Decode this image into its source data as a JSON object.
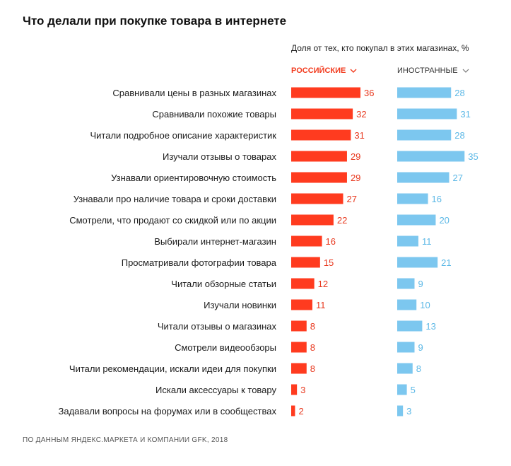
{
  "title": "Что делали при покупке товара в интернете",
  "subtitle": "Доля от тех, кто покупал в этих магазинах, %",
  "tabs": {
    "russian": "РОССИЙСКИЕ",
    "foreign": "ИНОСТРАННЫЕ"
  },
  "source": "ПО ДАННЫМ ЯНДЕКС.МАРКЕТА И КОМПАНИИ GFK, 2018",
  "colors": {
    "russian": "#ff3b1f",
    "foreign": "#7cc7ef",
    "russian_label": "#e8381e",
    "foreign_label": "#5cb8e6"
  },
  "chart_data": {
    "type": "bar",
    "orientation": "horizontal",
    "categories": [
      "Сравнивали цены в разных магазинах",
      "Сравнивали похожие товары",
      "Читали подробное описание характеристик",
      "Изучали отзывы о товарах",
      "Узнавали ориентировочную стоимость",
      "Узнавали про наличие товара и сроки доставки",
      "Смотрели, что продают со скидкой или по акции",
      "Выбирали интернет-магазин",
      "Просматривали фотографии товара",
      "Читали обзорные статьи",
      "Изучали новинки",
      "Читали отзывы о магазинах",
      "Смотрели видеообзоры",
      "Читали рекомендации, искали идеи для покупки",
      "Искали аксессуары к товару",
      "Задавали вопросы на форумах или в сообществах"
    ],
    "series": [
      {
        "name": "РОССИЙСКИЕ",
        "values": [
          36,
          32,
          31,
          29,
          29,
          27,
          22,
          16,
          15,
          12,
          11,
          8,
          8,
          8,
          3,
          2
        ]
      },
      {
        "name": "ИНОСТРАННЫЕ",
        "values": [
          28,
          31,
          28,
          35,
          27,
          16,
          20,
          11,
          21,
          9,
          10,
          13,
          9,
          8,
          5,
          3
        ]
      }
    ],
    "xlim": [
      0,
      36
    ]
  }
}
